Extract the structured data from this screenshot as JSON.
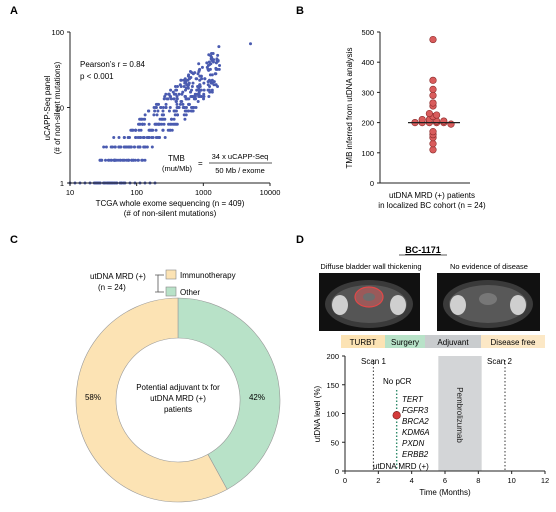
{
  "panels": {
    "a": {
      "letter": "A",
      "ylabel1": "uCAPP-Seq panel",
      "ylabel2": "(# of non-silent mutations)",
      "xlabel1": "TCGA whole exome sequencing (n = 409)",
      "xlabel2": "(# of non-silent mutations)",
      "pearson": "Pearson’s r = 0.84",
      "pvalue": "p < 0.001",
      "formula_left1": "TMB",
      "formula_left2": "(mut/Mb)",
      "formula_eq": "=",
      "formula_num": "34 x uCAPP-Seq",
      "formula_den": "50 Mb / exome"
    },
    "b": {
      "letter": "B",
      "ylabel": "TMB inferred from utDNA analysis",
      "xlabel1": "utDNA MRD (+) patients",
      "xlabel2": "in localized BC cohort (n = 24)"
    },
    "c": {
      "letter": "C",
      "group_label1": "utDNA MRD (+)",
      "group_label2": "(n = 24)",
      "legend": [
        {
          "label": "Immunotherapy",
          "color": "#fce3b4"
        },
        {
          "label": "Other",
          "color": "#b8e2c8"
        }
      ],
      "center1": "Potential adjuvant tx for",
      "center2": "utDNA MRD (+)",
      "center3": "patients",
      "pct_left": "58%",
      "pct_right": "42%"
    },
    "d": {
      "letter": "D",
      "case_id": "BC-1171",
      "img_left": "Diffuse bladder wall thickening",
      "img_right": "No evidence of disease",
      "phases": [
        {
          "label": "TURBT",
          "color": "#fce3b4"
        },
        {
          "label": "Surgery",
          "color": "#b8e2c8"
        },
        {
          "label": "Adjuvant",
          "color": "#c9ccce"
        },
        {
          "label": "Disease free",
          "color": "#fce8c6"
        }
      ],
      "scan1": "Scan 1",
      "scan2": "Scan 2",
      "nopcr": "No pCR",
      "genes": [
        "TERT",
        "FGFR3",
        "BRCA2",
        "KDM6A",
        "PXDN",
        "ERBB2"
      ],
      "drug": "Pembrolizumab",
      "mrd_label": "utDNA MRD (+)",
      "ylabel": "utDNA level (%)",
      "xlabel": "Time (Months)"
    }
  },
  "chart_data": [
    {
      "type": "scatter",
      "panel": "A",
      "xlabel": "TCGA whole exome sequencing (n = 409)",
      "ylabel": "uCAPP-Seq panel",
      "xscale": "log",
      "yscale": "log",
      "xlim": [
        10,
        10000
      ],
      "ylim": [
        1,
        100
      ],
      "xticks": [
        "10",
        "100",
        "1000",
        "10000"
      ],
      "yticks": [
        "1",
        "10",
        "100"
      ],
      "pearson_r": 0.84,
      "n": 409,
      "color": "#4a5bb0"
    },
    {
      "type": "scatter",
      "panel": "B",
      "ylabel": "TMB inferred from utDNA analysis",
      "ylim": [
        0,
        500
      ],
      "yticks": [
        "0",
        "100",
        "200",
        "300",
        "400",
        "500"
      ],
      "values": [
        475,
        340,
        310,
        290,
        265,
        255,
        230,
        225,
        220,
        210,
        210,
        205,
        205,
        200,
        200,
        200,
        200,
        200,
        195,
        170,
        160,
        150,
        130,
        110
      ],
      "median": 200,
      "color": "#d95c5c"
    },
    {
      "type": "pie",
      "panel": "C",
      "labels": [
        "Immunotherapy",
        "Other"
      ],
      "values": [
        58,
        42
      ],
      "colors": [
        "#fce3b4",
        "#b8e2c8"
      ]
    },
    {
      "type": "line",
      "panel": "D",
      "xlabel": "Time (Months)",
      "ylabel": "utDNA level (%)",
      "xlim": [
        0,
        12
      ],
      "ylim": [
        0,
        200
      ],
      "xticks": [
        "0",
        "2",
        "4",
        "6",
        "8",
        "10",
        "12"
      ],
      "yticks": [
        "0",
        "50",
        "100",
        "150",
        "200"
      ],
      "points": [
        {
          "x": 3.1,
          "y": 97
        }
      ],
      "scan_times": [
        1.7,
        9.6
      ],
      "drug_window": [
        5.6,
        8.2
      ]
    }
  ]
}
